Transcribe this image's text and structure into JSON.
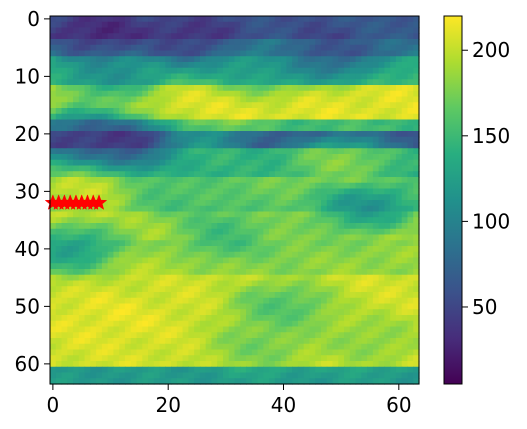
{
  "chart_data": {
    "type": "heatmap",
    "title": "",
    "xlabel": "",
    "ylabel": "",
    "grid_shape": [
      64,
      64
    ],
    "xlim": [
      -0.5,
      63.5
    ],
    "ylim": [
      63.5,
      -0.5
    ],
    "x_ticks": [
      0,
      20,
      40,
      60
    ],
    "y_ticks": [
      0,
      10,
      20,
      30,
      40,
      50,
      60
    ],
    "colormap": "viridis",
    "colorbar": {
      "min": 5,
      "max": 220,
      "ticks": [
        50,
        100,
        150,
        200
      ]
    },
    "bands": [
      {
        "y": [
          0,
          3
        ],
        "value": 60
      },
      {
        "y": [
          4,
          6
        ],
        "value": 100
      },
      {
        "y": [
          7,
          11
        ],
        "value": 150
      },
      {
        "y": [
          12,
          17
        ],
        "value": 210
      },
      {
        "y": [
          18,
          19
        ],
        "value": 150
      },
      {
        "y": [
          20,
          22
        ],
        "value": 60
      },
      {
        "y": [
          23,
          27
        ],
        "value": 140
      },
      {
        "y": [
          28,
          33
        ],
        "value": 170
      },
      {
        "y": [
          34,
          38
        ],
        "value": 200
      },
      {
        "y": [
          39,
          44
        ],
        "value": 185
      },
      {
        "y": [
          45,
          60
        ],
        "value": 205
      },
      {
        "y": [
          61,
          63
        ],
        "value": 120
      }
    ],
    "blobs": [
      {
        "x": 8,
        "y": 3,
        "value": 15
      },
      {
        "x": 24,
        "y": 4,
        "value": 25
      },
      {
        "x": 48,
        "y": 6,
        "value": 40
      },
      {
        "x": 60,
        "y": 2,
        "value": 70
      },
      {
        "x": 34,
        "y": 9,
        "value": 110
      },
      {
        "x": 10,
        "y": 10,
        "value": 100
      },
      {
        "x": 28,
        "y": 15,
        "value": 210
      },
      {
        "x": 14,
        "y": 22,
        "value": 25
      },
      {
        "x": 5,
        "y": 20,
        "value": 40
      },
      {
        "x": 24,
        "y": 23,
        "value": 150
      },
      {
        "x": 50,
        "y": 25,
        "value": 195
      },
      {
        "x": 6,
        "y": 30,
        "value": 215
      },
      {
        "x": 20,
        "y": 31,
        "value": 150
      },
      {
        "x": 54,
        "y": 33,
        "value": 90
      },
      {
        "x": 30,
        "y": 37,
        "value": 130
      },
      {
        "x": 42,
        "y": 38,
        "value": 170
      },
      {
        "x": 4,
        "y": 40,
        "value": 100
      },
      {
        "x": 14,
        "y": 44,
        "value": 200
      },
      {
        "x": 40,
        "y": 50,
        "value": 140
      },
      {
        "x": 36,
        "y": 57,
        "value": 160
      },
      {
        "x": 55,
        "y": 56,
        "value": 170
      },
      {
        "x": 10,
        "y": 52,
        "value": 215
      }
    ],
    "markers": {
      "symbol": "star",
      "color": "#ff0000",
      "y": 32,
      "x": [
        0,
        1,
        2,
        3,
        4,
        5,
        6,
        7,
        8
      ]
    }
  }
}
